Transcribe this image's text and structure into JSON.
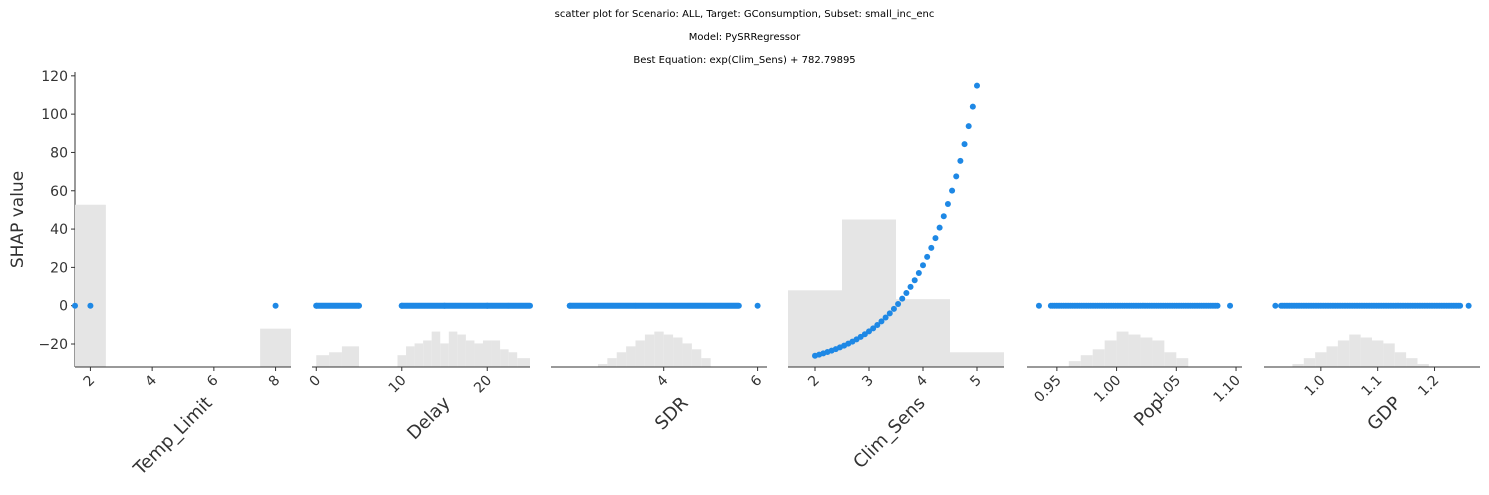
{
  "title": {
    "line1": "scatter plot for Scenario: ALL, Target: GConsumption, Subset: small_inc_enc",
    "line2": "Model: PySRRegressor",
    "line3": "Best Equation: exp(Clim_Sens) + 782.79895"
  },
  "colors": {
    "points": "#1e88e5",
    "hist": "#e5e5e5",
    "axis": "#333333"
  },
  "chart_data": {
    "type": "scatter",
    "ylabel": "SHAP value",
    "ylim": [
      -32,
      122
    ],
    "yticks": [
      -20,
      0,
      20,
      40,
      60,
      80,
      100,
      120
    ],
    "panels": [
      {
        "xlabel": "Temp_Limit",
        "xlim": [
          1.5,
          8.5
        ],
        "xticks": [
          2,
          4,
          6,
          8
        ],
        "hist": [
          {
            "x0": 1.5,
            "x1": 2.5,
            "h": 0.55
          },
          {
            "x0": 7.5,
            "x1": 8.5,
            "h": 0.13
          }
        ],
        "points": [
          [
            1.5,
            0
          ],
          [
            2,
            0
          ],
          [
            8,
            0
          ]
        ]
      },
      {
        "xlabel": "Delay",
        "xlim": [
          -0.5,
          25
        ],
        "xticks": [
          0,
          10,
          20
        ],
        "hist": [
          {
            "x0": 0,
            "x1": 1.5,
            "h": 0.04
          },
          {
            "x0": 1.5,
            "x1": 3,
            "h": 0.05
          },
          {
            "x0": 3,
            "x1": 5,
            "h": 0.07
          },
          {
            "x0": 9.5,
            "x1": 10.5,
            "h": 0.04
          },
          {
            "x0": 10.5,
            "x1": 11.5,
            "h": 0.07
          },
          {
            "x0": 11.5,
            "x1": 12.5,
            "h": 0.08
          },
          {
            "x0": 12.5,
            "x1": 13.5,
            "h": 0.09
          },
          {
            "x0": 13.5,
            "x1": 14.5,
            "h": 0.12
          },
          {
            "x0": 14.5,
            "x1": 15.5,
            "h": 0.08
          },
          {
            "x0": 15.5,
            "x1": 16.5,
            "h": 0.12
          },
          {
            "x0": 16.5,
            "x1": 17.5,
            "h": 0.11
          },
          {
            "x0": 17.5,
            "x1": 18.5,
            "h": 0.09
          },
          {
            "x0": 18.5,
            "x1": 19.5,
            "h": 0.08
          },
          {
            "x0": 19.5,
            "x1": 20.5,
            "h": 0.09
          },
          {
            "x0": 20.5,
            "x1": 21.5,
            "h": 0.09
          },
          {
            "x0": 21.5,
            "x1": 22.5,
            "h": 0.06
          },
          {
            "x0": 22.5,
            "x1": 23.5,
            "h": 0.05
          },
          {
            "x0": 23.5,
            "x1": 25,
            "h": 0.03
          }
        ],
        "points": [
          [
            0,
            0
          ],
          [
            5,
            0
          ],
          [
            10,
            0
          ],
          [
            15,
            0
          ],
          [
            20,
            0
          ],
          [
            25,
            0
          ]
        ]
      },
      {
        "xlabel": "SDR",
        "xlim": [
          1.6,
          6.2
        ],
        "xticks": [
          4,
          6
        ],
        "hist": [
          {
            "x0": 2.6,
            "x1": 2.8,
            "h": 0.01
          },
          {
            "x0": 2.8,
            "x1": 3.0,
            "h": 0.03
          },
          {
            "x0": 3.0,
            "x1": 3.2,
            "h": 0.05
          },
          {
            "x0": 3.2,
            "x1": 3.4,
            "h": 0.07
          },
          {
            "x0": 3.4,
            "x1": 3.6,
            "h": 0.09
          },
          {
            "x0": 3.6,
            "x1": 3.8,
            "h": 0.11
          },
          {
            "x0": 3.8,
            "x1": 4.0,
            "h": 0.12
          },
          {
            "x0": 4.0,
            "x1": 4.2,
            "h": 0.11
          },
          {
            "x0": 4.2,
            "x1": 4.4,
            "h": 0.1
          },
          {
            "x0": 4.4,
            "x1": 4.6,
            "h": 0.08
          },
          {
            "x0": 4.6,
            "x1": 4.8,
            "h": 0.06
          },
          {
            "x0": 4.8,
            "x1": 5.0,
            "h": 0.03
          }
        ],
        "points": [
          [
            2.0,
            0
          ],
          [
            6.0,
            0
          ]
        ]
      },
      {
        "xlabel": "Clim_Sens",
        "xlim": [
          1.5,
          5.5
        ],
        "xticks": [
          2,
          3,
          4,
          5
        ],
        "hist": [
          {
            "x0": 1.5,
            "x1": 2.5,
            "h": 0.26
          },
          {
            "x0": 2.5,
            "x1": 3.5,
            "h": 0.5
          },
          {
            "x0": 3.5,
            "x1": 4.5,
            "h": 0.23
          },
          {
            "x0": 4.5,
            "x1": 5.5,
            "h": 0.05
          }
        ],
        "curve": {
          "x0": 2.0,
          "x1": 5.0,
          "n": 40,
          "offset": -33.5
        },
        "points": []
      },
      {
        "xlabel": "Pop",
        "xlim": [
          0.925,
          1.105
        ],
        "xticks": [
          0.95,
          1.0,
          1.05,
          1.1
        ],
        "tick_labels": [
          "0.95",
          "1.00",
          "1.05",
          "1.10"
        ],
        "hist": [
          {
            "x0": 0.96,
            "x1": 0.97,
            "h": 0.02
          },
          {
            "x0": 0.97,
            "x1": 0.98,
            "h": 0.04
          },
          {
            "x0": 0.98,
            "x1": 0.99,
            "h": 0.06
          },
          {
            "x0": 0.99,
            "x1": 1.0,
            "h": 0.09
          },
          {
            "x0": 1.0,
            "x1": 1.01,
            "h": 0.12
          },
          {
            "x0": 1.01,
            "x1": 1.02,
            "h": 0.11
          },
          {
            "x0": 1.02,
            "x1": 1.03,
            "h": 0.1
          },
          {
            "x0": 1.03,
            "x1": 1.04,
            "h": 0.09
          },
          {
            "x0": 1.04,
            "x1": 1.05,
            "h": 0.05
          },
          {
            "x0": 1.05,
            "x1": 1.06,
            "h": 0.03
          }
        ],
        "points": [
          [
            0.935,
            0
          ],
          [
            1.095,
            0
          ]
        ]
      },
      {
        "xlabel": "GDP",
        "xlim": [
          0.9,
          1.28
        ],
        "xticks": [
          1.0,
          1.1,
          1.2
        ],
        "tick_labels": [
          "1.0",
          "1.1",
          "1.2"
        ],
        "hist": [
          {
            "x0": 0.95,
            "x1": 0.97,
            "h": 0.01
          },
          {
            "x0": 0.97,
            "x1": 0.99,
            "h": 0.03
          },
          {
            "x0": 0.99,
            "x1": 1.01,
            "h": 0.05
          },
          {
            "x0": 1.01,
            "x1": 1.03,
            "h": 0.07
          },
          {
            "x0": 1.03,
            "x1": 1.05,
            "h": 0.09
          },
          {
            "x0": 1.05,
            "x1": 1.07,
            "h": 0.11
          },
          {
            "x0": 1.07,
            "x1": 1.09,
            "h": 0.1
          },
          {
            "x0": 1.09,
            "x1": 1.11,
            "h": 0.09
          },
          {
            "x0": 1.11,
            "x1": 1.13,
            "h": 0.08
          },
          {
            "x0": 1.13,
            "x1": 1.15,
            "h": 0.05
          },
          {
            "x0": 1.15,
            "x1": 1.17,
            "h": 0.03
          },
          {
            "x0": 1.17,
            "x1": 1.19,
            "h": 0.01
          }
        ],
        "points": [
          [
            0.92,
            0
          ],
          [
            1.26,
            0
          ]
        ]
      }
    ]
  }
}
